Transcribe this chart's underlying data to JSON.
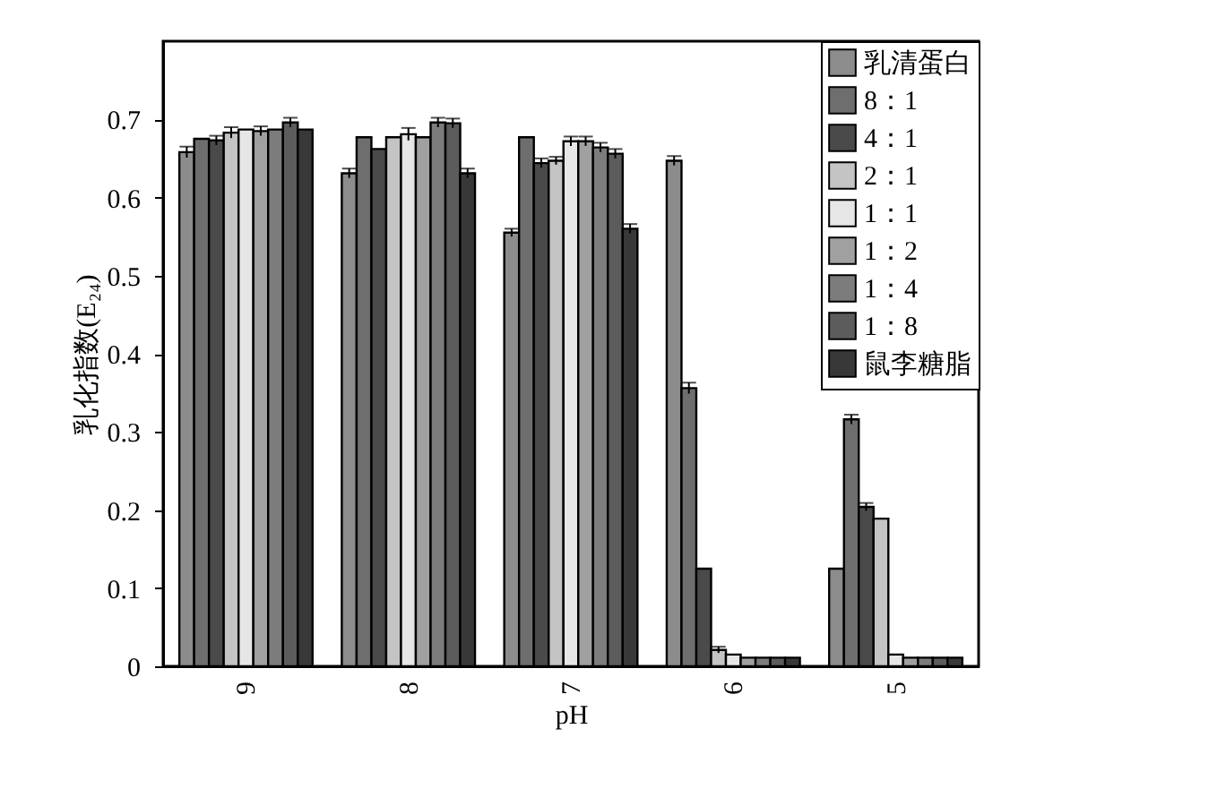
{
  "chart_data": {
    "type": "bar",
    "xlabel": "pH",
    "ylabel": "乳化指数(E₂₄)",
    "categories": [
      "9",
      "8",
      "7",
      "6",
      "5"
    ],
    "series": [
      {
        "name": "乳清蛋白",
        "color": "#8c8c8c",
        "values": [
          0.658,
          0.631,
          0.555,
          0.647,
          0.125
        ],
        "errors": [
          0.007,
          0.006,
          0.005,
          0.006,
          null
        ]
      },
      {
        "name": "8：1",
        "color": "#6e6e6e",
        "values": [
          0.675,
          0.677,
          0.677,
          0.356,
          0.316
        ],
        "errors": [
          null,
          null,
          null,
          0.007,
          0.006
        ]
      },
      {
        "name": "4：1",
        "color": "#4a4a4a",
        "values": [
          0.673,
          0.662,
          0.644,
          0.125,
          0.204
        ],
        "errors": [
          0.006,
          null,
          0.006,
          null,
          0.005
        ]
      },
      {
        "name": "2：1",
        "color": "#c4c4c4",
        "values": [
          0.683,
          0.677,
          0.647,
          0.021,
          0.189
        ],
        "errors": [
          0.007,
          null,
          0.005,
          0.004,
          null
        ]
      },
      {
        "name": "1：1",
        "color": "#e6e6e6",
        "values": [
          0.687,
          0.681,
          0.672,
          0.015,
          0.015
        ],
        "errors": [
          null,
          0.008,
          0.006,
          null,
          null
        ]
      },
      {
        "name": "1：2",
        "color": "#a0a0a0",
        "values": [
          0.685,
          0.677,
          0.672,
          0.011,
          0.011
        ],
        "errors": [
          0.006,
          null,
          0.006,
          null,
          null
        ]
      },
      {
        "name": "1：4",
        "color": "#7c7c7c",
        "values": [
          0.687,
          0.696,
          0.664,
          0.011,
          0.011
        ],
        "errors": [
          null,
          0.006,
          0.006,
          null,
          null
        ]
      },
      {
        "name": "1：8",
        "color": "#5c5c5c",
        "values": [
          0.696,
          0.695,
          0.656,
          0.011,
          0.011
        ],
        "errors": [
          0.006,
          0.006,
          0.006,
          null,
          null
        ]
      },
      {
        "name": "鼠李糖脂",
        "color": "#383838",
        "values": [
          0.687,
          0.631,
          0.56,
          0.011,
          0.011
        ],
        "errors": [
          null,
          0.006,
          0.006,
          null,
          null
        ]
      }
    ],
    "ylim": [
      0,
      0.8
    ],
    "yticks": [
      0,
      0.1,
      0.2,
      0.3,
      0.4,
      0.5,
      0.6,
      0.7
    ],
    "grid": false,
    "legend": "top right"
  }
}
